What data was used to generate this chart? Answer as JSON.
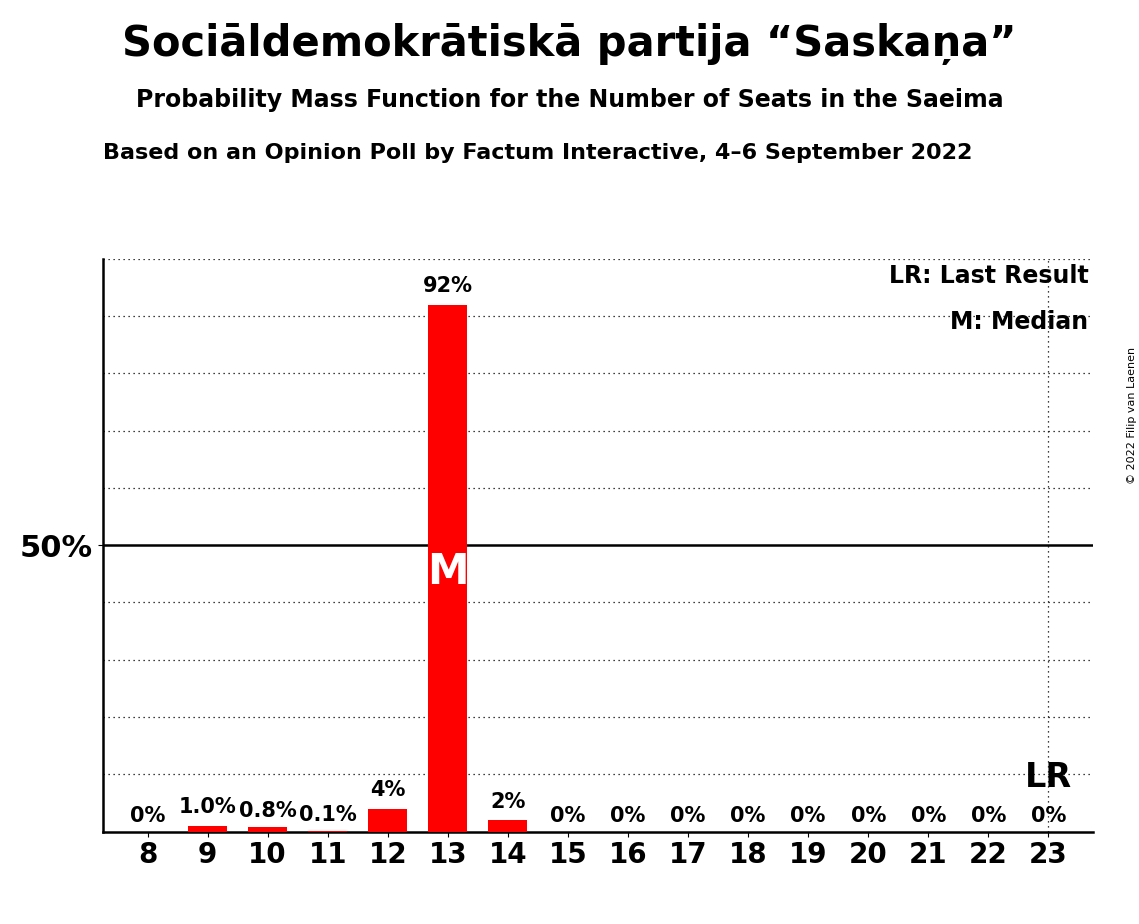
{
  "title": "Sociāldemokrātiskā partija “Saskaņa”",
  "subtitle": "Probability Mass Function for the Number of Seats in the Saeima",
  "source_line": "Based on an Opinion Poll by Factum Interactive, 4–6 September 2022",
  "copyright": "© 2022 Filip van Laenen",
  "seats": [
    8,
    9,
    10,
    11,
    12,
    13,
    14,
    15,
    16,
    17,
    18,
    19,
    20,
    21,
    22,
    23
  ],
  "probabilities": [
    0.0,
    1.0,
    0.8,
    0.1,
    4.0,
    92.0,
    2.0,
    0.0,
    0.0,
    0.0,
    0.0,
    0.0,
    0.0,
    0.0,
    0.0,
    0.0
  ],
  "labels": [
    "0%",
    "1.0%",
    "0.8%",
    "0.1%",
    "4%",
    "92%",
    "2%",
    "0%",
    "0%",
    "0%",
    "0%",
    "0%",
    "0%",
    "0%",
    "0%",
    "0%"
  ],
  "bar_color": "#ff0000",
  "median_seat": 13,
  "last_result_seat": 23,
  "fifty_pct_line": 50,
  "ylim": [
    0,
    100
  ],
  "y_label": "50%",
  "legend_lr": "LR: Last Result",
  "legend_m": "M: Median",
  "lr_label": "LR",
  "m_label": "M",
  "bg_color": "#ffffff",
  "bar_width": 0.65,
  "title_fontsize": 30,
  "subtitle_fontsize": 17,
  "source_fontsize": 16,
  "tick_fontsize": 20,
  "ylabel_fontsize": 22,
  "label_fontsize": 15,
  "legend_fontsize": 17,
  "lr_fontsize": 24,
  "m_fontsize": 30
}
